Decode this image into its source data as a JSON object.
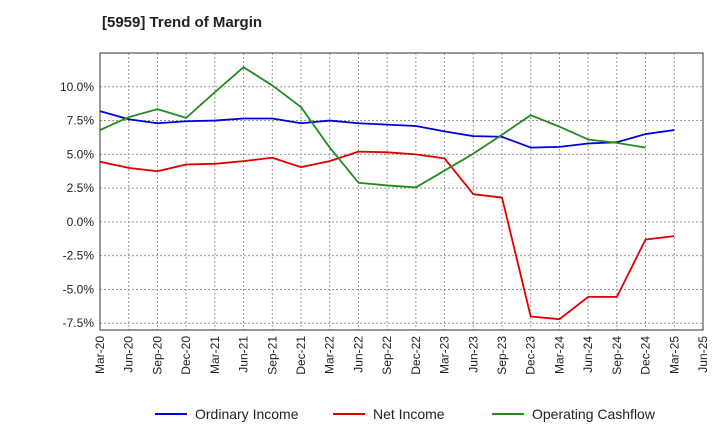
{
  "title": "[5959]  Trend of Margin",
  "chart_data": {
    "type": "line",
    "title": "[5959]  Trend of Margin",
    "xlabel": "",
    "ylabel": "",
    "x": [
      "Mar-20",
      "Jun-20",
      "Sep-20",
      "Dec-20",
      "Mar-21",
      "Jun-21",
      "Sep-21",
      "Dec-21",
      "Mar-22",
      "Jun-22",
      "Sep-22",
      "Dec-22",
      "Mar-23",
      "Jun-23",
      "Sep-23",
      "Dec-23",
      "Mar-24",
      "Jun-24",
      "Sep-24",
      "Dec-24",
      "Mar-25",
      "Jun-25"
    ],
    "ylim": [
      -8.0,
      12.5
    ],
    "yticks": [
      10.0,
      7.5,
      5.0,
      2.5,
      0.0,
      -2.5,
      -5.0,
      -7.5
    ],
    "ytick_labels": [
      "10.0%",
      "7.5%",
      "5.0%",
      "2.5%",
      "0.0%",
      "-2.5%",
      "-5.0%",
      "-7.5%"
    ],
    "grid": true,
    "legend_position": "bottom",
    "series": [
      {
        "name": "Ordinary Income",
        "color": "#0000dd",
        "values": [
          8.2,
          7.6,
          7.3,
          7.45,
          7.5,
          7.65,
          7.65,
          7.3,
          7.5,
          7.3,
          7.2,
          7.1,
          6.7,
          6.35,
          6.3,
          5.5,
          5.55,
          5.8,
          5.9,
          6.5,
          6.8,
          null
        ]
      },
      {
        "name": "Net Income",
        "color": "#dd0000",
        "values": [
          4.45,
          4.0,
          3.75,
          4.25,
          4.3,
          4.5,
          4.75,
          4.05,
          4.5,
          5.2,
          5.15,
          5.0,
          4.7,
          2.05,
          1.8,
          -7.0,
          -7.2,
          -5.55,
          -5.55,
          -1.3,
          -1.05,
          null
        ]
      },
      {
        "name": "Operating Cashflow",
        "color": "#228b22",
        "values": [
          6.8,
          7.75,
          8.35,
          7.7,
          9.6,
          11.45,
          10.1,
          8.5,
          5.5,
          2.9,
          2.7,
          2.55,
          3.8,
          5.05,
          6.45,
          7.9,
          7.05,
          6.1,
          5.85,
          5.5,
          null,
          null
        ]
      }
    ]
  }
}
